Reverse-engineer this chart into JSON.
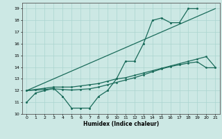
{
  "xlabel": "Humidex (Indice chaleur)",
  "xlim": [
    -0.5,
    21.5
  ],
  "ylim": [
    10,
    19.5
  ],
  "yticks": [
    10,
    11,
    12,
    13,
    14,
    15,
    16,
    17,
    18,
    19
  ],
  "xticks": [
    0,
    1,
    2,
    3,
    4,
    5,
    6,
    7,
    8,
    9,
    10,
    11,
    12,
    13,
    14,
    15,
    16,
    17,
    18,
    19,
    20,
    21
  ],
  "bg_color": "#cce8e4",
  "line_color": "#1a6b5a",
  "grid_color": "#aad4cf",
  "line1_y": [
    11.0,
    11.8,
    12.0,
    12.2,
    11.5,
    10.5,
    10.5,
    10.5,
    11.5,
    12.0,
    13.0,
    14.5,
    14.5,
    16.0,
    18.0,
    18.2,
    17.8,
    17.8,
    19.0,
    19.0,
    null,
    null
  ],
  "line2_y": [
    12.0,
    12.1,
    12.2,
    12.3,
    12.3,
    12.3,
    12.4,
    12.5,
    12.6,
    12.8,
    13.0,
    13.1,
    13.3,
    13.5,
    13.7,
    13.9,
    14.1,
    14.3,
    14.5,
    14.7,
    14.9,
    14.0
  ],
  "line3_y": [
    12.0,
    12.05,
    12.1,
    12.15,
    12.1,
    12.05,
    12.1,
    12.15,
    12.3,
    12.5,
    12.7,
    12.9,
    13.1,
    13.35,
    13.6,
    13.85,
    14.05,
    14.2,
    14.35,
    14.45,
    13.95,
    13.95
  ],
  "line4_x": [
    0,
    21
  ],
  "line4_y": [
    12.0,
    19.0
  ]
}
